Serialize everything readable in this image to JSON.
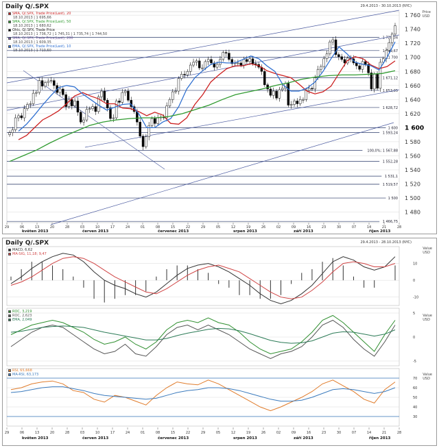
{
  "window": {
    "top_title": "Daily Q/.SPX",
    "top_range": "29.4.2013 - 30.10.2013 (NYC)",
    "bottom_title": "Daily Q/.SPX",
    "bottom_range": "29.4.2013 - 28.10.2013 (NYC)",
    "price_unit_1": "Price",
    "price_unit_2": "USD",
    "value_unit_1": "Value",
    "value_unit_2": "USD"
  },
  "colors": {
    "candle_up": "#ffffff",
    "candle_down": "#000000",
    "sma20": "#cc1f1f",
    "ema10": "#2e6fd0",
    "sma50": "#2f9a2f",
    "sma200": "#7b5aa0",
    "grid": "#d0d0d0",
    "macd": "#333333",
    "macd_signal": "#d04444",
    "roc1": "#2f8f2f",
    "roc2": "#555555",
    "roc_ema": "#2a7a55",
    "rsi1": "#e07b2a",
    "rsi2": "#3a7abd"
  },
  "legend_top": [
    {
      "label": "SMA, Q/.SPX, Trade Price(Last), 20",
      "value": "18.10.2013 | 1 695,66",
      "color": "#cc1f1f"
    },
    {
      "label": "SMA, Q/.SPX, Trade Price(Last), 50",
      "value": "18.10.2013 | 1 680,62",
      "color": "#2f9a2f"
    },
    {
      "label": "Ohlc, Q/.SPX, Trade Price",
      "value": "18.10.2013 | 1 736,72 | 1 745,31 | 1 735,74 | 1 744,50",
      "color": "#000000"
    },
    {
      "label": "SMA, Q/.SPX, Trade Price(Last), 200",
      "value": "18.10.2013 | 1 609,35",
      "color": "#7b5aa0"
    },
    {
      "label": "EMA, Q/.SPX, Trade Price(Last), 10",
      "value": "18.10.2013 | 1 710,60",
      "color": "#2e6fd0"
    }
  ],
  "legend_macd": [
    {
      "label": "MACD, 6,62",
      "color": "#333333"
    },
    {
      "label": "MA-SIG, 11,18; 9,47",
      "color": "#d04444"
    }
  ],
  "legend_roc": [
    {
      "label": "ROC, 3,219",
      "color": "#2f8f2f"
    },
    {
      "label": "ROC, 2,623",
      "color": "#555555"
    },
    {
      "label": "EMA, 2,049",
      "color": "#2a7a55"
    }
  ],
  "legend_rsi": [
    {
      "label": "RSI, 65,668",
      "color": "#e07b2a"
    },
    {
      "label": "MA-RSI, 63,173",
      "color": "#3a7abd"
    }
  ],
  "chart_data": [
    {
      "type": "candlestick",
      "title": "Daily Q/.SPX",
      "ylabel": "Price USD",
      "ylim": [
        1465,
        1765
      ],
      "yticks": [
        1480,
        1500,
        1520,
        1540,
        1560,
        1580,
        1600,
        1620,
        1640,
        1660,
        1680,
        1700,
        1720,
        1740,
        1760
      ],
      "ytick_labels": [
        "1 480",
        "1 500",
        "1 520",
        "1 540",
        "1 560",
        "1 580",
        "1 600",
        "1 620",
        "1 640",
        "1 660",
        "1 680",
        "1 700",
        "1 720",
        "1 740",
        "1 760"
      ],
      "xticks": [
        "29",
        "06",
        "13",
        "20",
        "28",
        "03",
        "10",
        "17",
        "24",
        "01",
        "08",
        "15",
        "22",
        "29",
        "05",
        "12",
        "19",
        "26",
        "02",
        "09",
        "16",
        "23",
        "30",
        "07",
        "14",
        "21",
        "28"
      ],
      "month_labels": [
        "květen 2013",
        "červen 2013",
        "červenec 2013",
        "srpen 2013",
        "září 2013",
        "říjen 2013"
      ],
      "month_label_index": [
        1,
        5,
        10,
        15,
        19,
        24
      ],
      "ohlc_close": [
        1593,
        1597,
        1614,
        1617,
        1614,
        1627,
        1633,
        1634,
        1649,
        1650,
        1667,
        1659,
        1664,
        1666,
        1667,
        1660,
        1650,
        1655,
        1647,
        1630,
        1640,
        1631,
        1638,
        1622,
        1608,
        1611,
        1626,
        1627,
        1630,
        1623,
        1644,
        1652,
        1639,
        1628,
        1613,
        1614,
        1638,
        1636,
        1650,
        1652,
        1639,
        1630,
        1623,
        1608,
        1588,
        1573,
        1587,
        1603,
        1613,
        1606,
        1614,
        1615,
        1614,
        1631,
        1640,
        1651,
        1652,
        1670,
        1676,
        1675,
        1680,
        1689,
        1693,
        1695,
        1685,
        1685,
        1694,
        1697,
        1692,
        1686,
        1690,
        1697,
        1707,
        1706,
        1697,
        1691,
        1692,
        1692,
        1689,
        1697,
        1694,
        1698,
        1691,
        1690,
        1686,
        1680,
        1661,
        1655,
        1646,
        1652,
        1642,
        1654,
        1656,
        1663,
        1632,
        1633,
        1638,
        1634,
        1640,
        1640,
        1653,
        1656,
        1655,
        1671,
        1683,
        1687,
        1698,
        1705,
        1722,
        1725,
        1704,
        1701,
        1697,
        1692,
        1699,
        1698,
        1692,
        1688,
        1683,
        1694,
        1690,
        1678,
        1655,
        1676,
        1656,
        1693,
        1698,
        1710,
        1721,
        1733,
        1745
      ],
      "horizontal_levels": [
        {
          "value": 1728.34,
          "label": "1 728,34"
        },
        {
          "value": 1709.67,
          "label": "1 709,67"
        },
        {
          "value": 1700.0,
          "label": "1 700"
        },
        {
          "value": 1671.12,
          "label": "1 671,12"
        },
        {
          "value": 1653.05,
          "label": "1 653,05"
        },
        {
          "value": 1628.72,
          "label": "1 628,72"
        },
        {
          "value": 1600.0,
          "label": "1 600"
        },
        {
          "value": 1593.24,
          "label": "1 593,24"
        },
        {
          "value": 1567.88,
          "label": "100,0%; 1 567,88"
        },
        {
          "value": 1552.28,
          "label": "1 552,28"
        },
        {
          "value": 1531.1,
          "label": "1 531,1"
        },
        {
          "value": 1519.57,
          "label": "1 519,57"
        },
        {
          "value": 1500.0,
          "label": "1 500"
        },
        {
          "value": 1466.75,
          "label": "1 466,75"
        }
      ],
      "series": [
        {
          "name": "SMA, Q/.SPX, Trade Price(Last), 20",
          "values": [
            1583,
            1589,
            1600,
            1611,
            1617,
            1624,
            1634,
            1645,
            1650,
            1645,
            1641,
            1634,
            1634,
            1628,
            1627,
            1623,
            1617,
            1622,
            1618,
            1606,
            1605,
            1614,
            1633,
            1647,
            1665,
            1675,
            1684,
            1688,
            1688,
            1691,
            1688,
            1681,
            1677,
            1674,
            1671,
            1662,
            1652,
            1648,
            1651,
            1659,
            1677,
            1695,
            1701,
            1698,
            1689,
            1684,
            1687,
            1695
          ]
        },
        {
          "name": "EMA, Q/.SPX, Trade Price(Last), 10",
          "values": [
            1595,
            1605,
            1618,
            1632,
            1645,
            1657,
            1660,
            1658,
            1648,
            1640,
            1632,
            1625,
            1629,
            1633,
            1634,
            1620,
            1600,
            1600,
            1608,
            1613,
            1630,
            1655,
            1671,
            1681,
            1690,
            1693,
            1692,
            1692,
            1697,
            1702,
            1698,
            1688,
            1680,
            1661,
            1652,
            1652,
            1656,
            1665,
            1680,
            1698,
            1715,
            1705,
            1693,
            1690,
            1688,
            1682,
            1700,
            1722
          ]
        },
        {
          "name": "SMA, Q/.SPX, Trade Price(Last), 50",
          "values": [
            1552,
            1560,
            1568,
            1578,
            1587,
            1595,
            1603,
            1608,
            1611,
            1613,
            1614,
            1614,
            1616,
            1620,
            1626,
            1632,
            1640,
            1647,
            1651,
            1655,
            1660,
            1664,
            1669,
            1672,
            1674,
            1675,
            1675,
            1676,
            1677,
            1681
          ]
        }
      ]
    },
    {
      "type": "line",
      "title": "MACD",
      "ylim": [
        -15,
        20
      ],
      "yticks": [
        -10,
        0,
        10
      ],
      "series": [
        {
          "name": "MACD, 6,62",
          "values": [
            -2,
            2,
            7,
            11,
            14,
            16,
            15,
            11,
            5,
            0,
            -3,
            -5,
            -8,
            -10,
            -7,
            -2,
            3,
            7,
            9,
            10,
            8,
            5,
            1,
            -3,
            -8,
            -12,
            -14,
            -12,
            -8,
            -3,
            4,
            11,
            14,
            12,
            8,
            6,
            8,
            14
          ]
        },
        {
          "name": "MA-SIG, 11,18; 9,47",
          "values": [
            -3,
            -1,
            2,
            6,
            10,
            13,
            14,
            13,
            10,
            6,
            2,
            -1,
            -4,
            -7,
            -8,
            -5,
            -1,
            3,
            6,
            8,
            9,
            7,
            5,
            1,
            -3,
            -7,
            -10,
            -11,
            -10,
            -6,
            -1,
            5,
            10,
            11,
            10,
            8,
            8,
            10
          ]
        }
      ]
    },
    {
      "type": "line",
      "title": "ROC",
      "ylim": [
        -6,
        6
      ],
      "yticks": [
        -5,
        0,
        5
      ],
      "series": [
        {
          "name": "ROC, 3,219",
          "values": [
            0.5,
            1.5,
            2.5,
            3.0,
            3.5,
            3.0,
            2.0,
            1.0,
            -0.5,
            -1.5,
            -1.0,
            0.0,
            -1.5,
            -2.5,
            -1.0,
            1.5,
            3.0,
            3.5,
            3.0,
            4.0,
            3.0,
            2.5,
            1.0,
            -1.0,
            -2.5,
            -3.5,
            -3.0,
            -2.5,
            -1.0,
            1.0,
            3.5,
            4.5,
            3.0,
            1.0,
            -1.0,
            -3.0,
            0.5,
            3.5
          ]
        },
        {
          "name": "ROC, 2,623",
          "values": [
            -2.0,
            -0.5,
            1.0,
            2.0,
            2.5,
            2.0,
            0.5,
            -1.0,
            -2.5,
            -3.5,
            -3.0,
            -1.5,
            -3.5,
            -4.0,
            -2.0,
            0.5,
            2.0,
            2.5,
            1.5,
            2.5,
            1.5,
            0.5,
            -1.0,
            -2.5,
            -3.5,
            -4.5,
            -3.5,
            -3.0,
            -2.0,
            0.0,
            2.5,
            3.5,
            2.0,
            -0.5,
            -2.5,
            -4.0,
            -1.0,
            2.5
          ]
        },
        {
          "name": "EMA, 2,049",
          "values": [
            1.0,
            1.2,
            1.6,
            2.0,
            2.2,
            2.3,
            2.2,
            2.0,
            1.5,
            1.0,
            0.6,
            0.2,
            -0.2,
            -0.6,
            -0.6,
            -0.3,
            0.3,
            0.8,
            1.2,
            1.6,
            1.8,
            1.7,
            1.3,
            0.7,
            0.0,
            -0.7,
            -1.1,
            -1.3,
            -1.2,
            -0.8,
            0.0,
            0.8,
            1.1,
            1.0,
            0.6,
            0.2,
            0.6,
            1.5
          ]
        }
      ]
    },
    {
      "type": "line",
      "title": "RSI",
      "ylim": [
        20,
        80
      ],
      "yticks": [
        30,
        40,
        50,
        60,
        70
      ],
      "series": [
        {
          "name": "RSI, 65,668",
          "values": [
            58,
            60,
            64,
            66,
            67,
            64,
            57,
            55,
            48,
            45,
            52,
            50,
            46,
            42,
            52,
            60,
            66,
            64,
            63,
            68,
            64,
            58,
            52,
            46,
            40,
            36,
            40,
            45,
            50,
            56,
            64,
            68,
            62,
            56,
            48,
            44,
            58,
            66
          ]
        },
        {
          "name": "MA-RSI, 63,173",
          "values": [
            55,
            56,
            58,
            60,
            61,
            61,
            59,
            57,
            54,
            52,
            51,
            50,
            49,
            48,
            49,
            52,
            55,
            57,
            58,
            60,
            60,
            59,
            57,
            54,
            51,
            48,
            46,
            46,
            47,
            50,
            54,
            58,
            59,
            58,
            56,
            54,
            56,
            60
          ]
        }
      ]
    }
  ]
}
